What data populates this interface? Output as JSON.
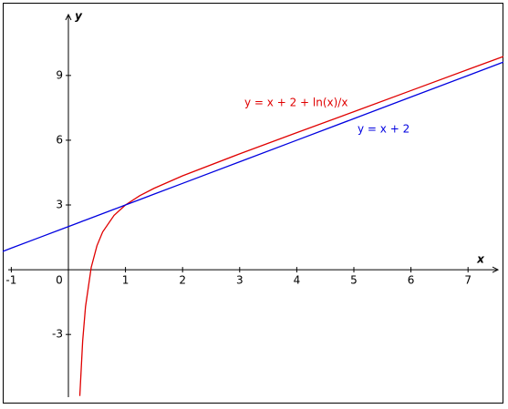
{
  "chart_data": {
    "type": "line",
    "x_label": "x",
    "y_label": "y",
    "x": [
      -1.15,
      -1,
      -0.5,
      0,
      0.2,
      0.25,
      0.3,
      0.4,
      0.5,
      0.6,
      0.8,
      1,
      1.25,
      1.5,
      2,
      3,
      4,
      5,
      6,
      7,
      7.62
    ],
    "series": [
      {
        "name": "y = x + 2 + ln(x)/x",
        "color": "#e00000",
        "values": [
          null,
          null,
          null,
          null,
          -5.85,
          -3.3,
          -1.71,
          0.11,
          1.11,
          1.75,
          2.52,
          3,
          3.43,
          3.77,
          4.35,
          5.37,
          6.35,
          7.32,
          8.3,
          9.28,
          9.88
        ]
      },
      {
        "name": "y = x + 2",
        "color": "#0000e0",
        "values": [
          0.85,
          1,
          1.5,
          2,
          2.2,
          2.25,
          2.3,
          2.4,
          2.5,
          2.6,
          2.8,
          3,
          3.25,
          3.5,
          4,
          5,
          6,
          7,
          8,
          9,
          9.62
        ]
      }
    ],
    "xlim": [
      -1.15,
      7.62
    ],
    "ylim": [
      -6.2,
      12.37
    ],
    "xticks": [
      -1,
      0,
      1,
      2,
      3,
      4,
      5,
      6,
      7
    ],
    "yticks": [
      -3,
      3,
      6,
      9
    ],
    "grid": false
  }
}
